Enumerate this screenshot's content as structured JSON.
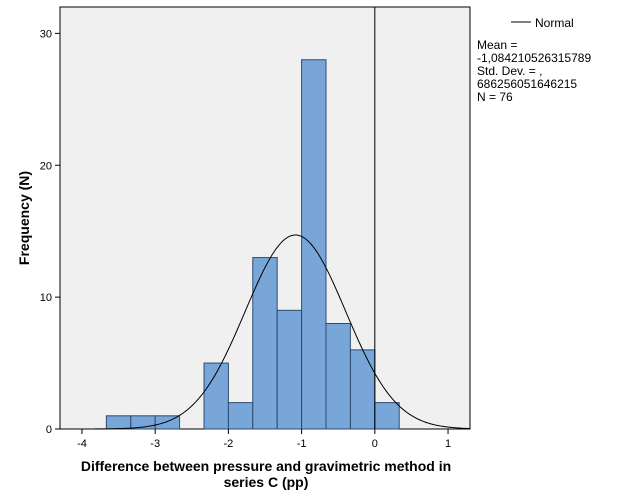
{
  "chart_data": {
    "type": "histogram",
    "title": "",
    "xlabel_lines": [
      "Difference between pressure and gravimetric method in",
      "series C (pp)"
    ],
    "ylabel": "Frequency (N)",
    "xlim": [
      -4.3,
      1.3
    ],
    "ylim": [
      0,
      32
    ],
    "xticks": [
      -4,
      -3,
      -2,
      -1,
      0,
      1
    ],
    "yticks": [
      0,
      10,
      20,
      30
    ],
    "bin_width": 0.333,
    "bins": [
      {
        "start": -3.667,
        "count": 1
      },
      {
        "start": -3.333,
        "count": 1
      },
      {
        "start": -3.0,
        "count": 1
      },
      {
        "start": -2.333,
        "count": 5
      },
      {
        "start": -2.0,
        "count": 2
      },
      {
        "start": -1.667,
        "count": 13
      },
      {
        "start": -1.333,
        "count": 9
      },
      {
        "start": -1.0,
        "count": 28
      },
      {
        "start": -0.667,
        "count": 8
      },
      {
        "start": -0.333,
        "count": 6
      },
      {
        "start": 0.0,
        "count": 2
      }
    ],
    "reference_line_x": 0,
    "normal_curve": {
      "mean": -1.084210526315789,
      "sd": 0.686256051646215,
      "n": 76
    },
    "legend": {
      "series_label": "Normal",
      "stat_lines": [
        "Mean =",
        "-1,084210526315789",
        "Std. Dev. = ,",
        "686256051646215",
        "N = 76"
      ],
      "placement": "top-right"
    },
    "colors": {
      "plot_background": "#f0f0f0",
      "bar_fill": "#79a6d8",
      "bar_stroke": "#2e4a6e",
      "curve": "#000000",
      "axis": "#000000"
    }
  }
}
